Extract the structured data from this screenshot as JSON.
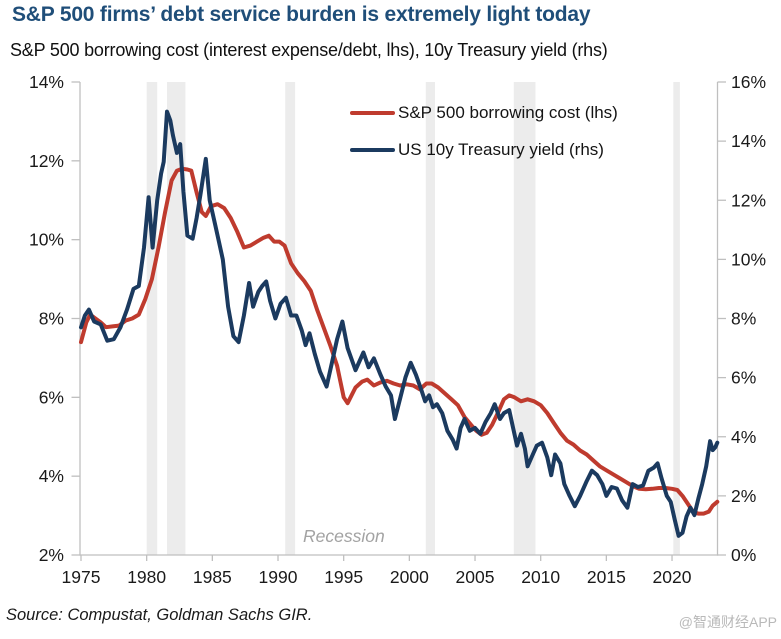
{
  "header": {
    "title": "S&P 500 firms’ debt service burden is extremely light today",
    "subtitle": "S&P 500 borrowing cost (interest expense/debt, lhs), 10y Treasury yield (rhs)"
  },
  "footer": {
    "source": "Source: Compustat, Goldman Sachs GIR.",
    "watermark": "@智通财经APP"
  },
  "chart_data": {
    "type": "line",
    "title": "S&P 500 firms’ debt service burden is extremely light today",
    "subtitle": "S&P 500 borrowing cost (interest expense/debt, lhs), 10y Treasury yield (rhs)",
    "grid": false,
    "legend_position": "top-center",
    "recession_label": "Recession",
    "x_axis": {
      "min": 1975,
      "max": 2023.5,
      "ticks": [
        1975,
        1980,
        1985,
        1990,
        1995,
        2000,
        2005,
        2010,
        2015,
        2020
      ]
    },
    "left_axis": {
      "min": 2,
      "max": 14,
      "unit": "%",
      "ticks": [
        14,
        12,
        10,
        8,
        6,
        4,
        2
      ]
    },
    "right_axis": {
      "min": 0,
      "max": 16,
      "unit": "%",
      "ticks": [
        16,
        14,
        12,
        10,
        8,
        6,
        4,
        2,
        0
      ]
    },
    "recession_bands": [
      [
        1980.0,
        1980.8
      ],
      [
        1981.55,
        1982.95
      ],
      [
        1990.55,
        1991.3
      ],
      [
        2001.25,
        2001.95
      ],
      [
        2007.95,
        2009.6
      ],
      [
        2020.1,
        2020.6
      ]
    ],
    "colors": {
      "recession_band": "#ececec",
      "axis": "#bfbfbf",
      "tick_text": "#1a1a1a"
    },
    "series": [
      {
        "name": "S&P 500 borrowing cost (lhs)",
        "axis": "left",
        "color": "#bf3b2e",
        "points": [
          [
            1975.0,
            7.4
          ],
          [
            1975.4,
            7.9
          ],
          [
            1975.7,
            8.1
          ],
          [
            1976.1,
            8.0
          ],
          [
            1976.5,
            7.9
          ],
          [
            1976.9,
            7.78
          ],
          [
            1977.4,
            7.8
          ],
          [
            1977.9,
            7.82
          ],
          [
            1978.4,
            7.95
          ],
          [
            1978.9,
            8.0
          ],
          [
            1979.4,
            8.1
          ],
          [
            1979.9,
            8.5
          ],
          [
            1980.4,
            9.0
          ],
          [
            1980.9,
            9.8
          ],
          [
            1981.4,
            10.7
          ],
          [
            1981.9,
            11.5
          ],
          [
            1982.3,
            11.75
          ],
          [
            1982.7,
            11.8
          ],
          [
            1983.1,
            11.78
          ],
          [
            1983.4,
            11.75
          ],
          [
            1983.8,
            11.2
          ],
          [
            1984.2,
            10.7
          ],
          [
            1984.5,
            10.6
          ],
          [
            1984.9,
            10.85
          ],
          [
            1985.4,
            10.9
          ],
          [
            1985.9,
            10.8
          ],
          [
            1986.4,
            10.55
          ],
          [
            1986.9,
            10.2
          ],
          [
            1987.4,
            9.8
          ],
          [
            1987.9,
            9.85
          ],
          [
            1988.4,
            9.95
          ],
          [
            1988.9,
            10.05
          ],
          [
            1989.3,
            10.1
          ],
          [
            1989.7,
            9.95
          ],
          [
            1990.1,
            9.95
          ],
          [
            1990.5,
            9.85
          ],
          [
            1991.0,
            9.4
          ],
          [
            1991.5,
            9.15
          ],
          [
            1992.0,
            8.95
          ],
          [
            1992.5,
            8.7
          ],
          [
            1993.0,
            8.2
          ],
          [
            1993.5,
            7.75
          ],
          [
            1994.0,
            7.3
          ],
          [
            1994.5,
            6.8
          ],
          [
            1995.0,
            6.0
          ],
          [
            1995.3,
            5.85
          ],
          [
            1995.9,
            6.25
          ],
          [
            1996.4,
            6.4
          ],
          [
            1996.8,
            6.45
          ],
          [
            1997.3,
            6.3
          ],
          [
            1997.8,
            6.38
          ],
          [
            1998.3,
            6.42
          ],
          [
            1998.8,
            6.35
          ],
          [
            1999.3,
            6.3
          ],
          [
            1999.8,
            6.33
          ],
          [
            2000.3,
            6.3
          ],
          [
            2000.8,
            6.2
          ],
          [
            2001.3,
            6.35
          ],
          [
            2001.7,
            6.35
          ],
          [
            2002.2,
            6.25
          ],
          [
            2002.7,
            6.1
          ],
          [
            2003.2,
            5.95
          ],
          [
            2003.7,
            5.8
          ],
          [
            2004.2,
            5.5
          ],
          [
            2004.7,
            5.3
          ],
          [
            2005.1,
            5.15
          ],
          [
            2005.5,
            5.05
          ],
          [
            2005.9,
            5.1
          ],
          [
            2006.3,
            5.3
          ],
          [
            2006.8,
            5.65
          ],
          [
            2007.2,
            5.95
          ],
          [
            2007.6,
            6.05
          ],
          [
            2008.0,
            6.0
          ],
          [
            2008.5,
            5.9
          ],
          [
            2009.0,
            5.95
          ],
          [
            2009.5,
            5.9
          ],
          [
            2010.0,
            5.8
          ],
          [
            2010.5,
            5.6
          ],
          [
            2011.0,
            5.35
          ],
          [
            2011.5,
            5.1
          ],
          [
            2012.0,
            4.9
          ],
          [
            2012.5,
            4.8
          ],
          [
            2013.0,
            4.65
          ],
          [
            2013.5,
            4.55
          ],
          [
            2014.0,
            4.4
          ],
          [
            2014.5,
            4.25
          ],
          [
            2015.0,
            4.15
          ],
          [
            2015.5,
            4.05
          ],
          [
            2016.0,
            3.95
          ],
          [
            2016.5,
            3.85
          ],
          [
            2017.0,
            3.75
          ],
          [
            2017.5,
            3.68
          ],
          [
            2018.0,
            3.67
          ],
          [
            2018.5,
            3.68
          ],
          [
            2019.0,
            3.7
          ],
          [
            2019.5,
            3.7
          ],
          [
            2020.0,
            3.68
          ],
          [
            2020.4,
            3.65
          ],
          [
            2020.8,
            3.5
          ],
          [
            2021.2,
            3.3
          ],
          [
            2021.6,
            3.1
          ],
          [
            2022.0,
            3.05
          ],
          [
            2022.4,
            3.05
          ],
          [
            2022.8,
            3.1
          ],
          [
            2023.1,
            3.25
          ],
          [
            2023.45,
            3.35
          ]
        ]
      },
      {
        "name": "US 10y Treasury yield (rhs)",
        "axis": "right",
        "color": "#1b3a5f",
        "points": [
          [
            1975.0,
            7.7
          ],
          [
            1975.3,
            8.1
          ],
          [
            1975.6,
            8.3
          ],
          [
            1976.0,
            7.9
          ],
          [
            1976.5,
            7.8
          ],
          [
            1977.0,
            7.25
          ],
          [
            1977.5,
            7.3
          ],
          [
            1978.0,
            7.7
          ],
          [
            1978.5,
            8.3
          ],
          [
            1979.0,
            9.0
          ],
          [
            1979.4,
            9.1
          ],
          [
            1979.8,
            10.4
          ],
          [
            1980.15,
            12.1
          ],
          [
            1980.45,
            10.4
          ],
          [
            1980.8,
            12.0
          ],
          [
            1981.1,
            12.9
          ],
          [
            1981.3,
            13.3
          ],
          [
            1981.55,
            15.0
          ],
          [
            1981.8,
            14.7
          ],
          [
            1982.0,
            14.2
          ],
          [
            1982.3,
            13.6
          ],
          [
            1982.55,
            13.9
          ],
          [
            1982.8,
            12.3
          ],
          [
            1983.1,
            10.8
          ],
          [
            1983.5,
            10.7
          ],
          [
            1983.8,
            11.4
          ],
          [
            1984.1,
            12.2
          ],
          [
            1984.5,
            13.4
          ],
          [
            1984.8,
            12.0
          ],
          [
            1985.2,
            11.2
          ],
          [
            1985.5,
            10.6
          ],
          [
            1985.8,
            10.0
          ],
          [
            1986.2,
            8.4
          ],
          [
            1986.6,
            7.4
          ],
          [
            1987.0,
            7.2
          ],
          [
            1987.4,
            8.1
          ],
          [
            1987.8,
            9.2
          ],
          [
            1988.1,
            8.4
          ],
          [
            1988.5,
            8.9
          ],
          [
            1988.8,
            9.1
          ],
          [
            1989.1,
            9.25
          ],
          [
            1989.4,
            8.6
          ],
          [
            1989.8,
            8.0
          ],
          [
            1990.2,
            8.5
          ],
          [
            1990.6,
            8.7
          ],
          [
            1991.0,
            8.1
          ],
          [
            1991.4,
            8.1
          ],
          [
            1991.8,
            7.6
          ],
          [
            1992.1,
            7.1
          ],
          [
            1992.4,
            7.5
          ],
          [
            1992.8,
            6.8
          ],
          [
            1993.2,
            6.2
          ],
          [
            1993.7,
            5.7
          ],
          [
            1994.1,
            6.5
          ],
          [
            1994.5,
            7.3
          ],
          [
            1994.9,
            7.9
          ],
          [
            1995.3,
            7.0
          ],
          [
            1995.9,
            6.25
          ],
          [
            1996.5,
            6.85
          ],
          [
            1996.9,
            6.35
          ],
          [
            1997.3,
            6.65
          ],
          [
            1997.8,
            6.1
          ],
          [
            1998.2,
            5.7
          ],
          [
            1998.6,
            5.4
          ],
          [
            1998.9,
            4.6
          ],
          [
            1999.3,
            5.3
          ],
          [
            1999.7,
            6.0
          ],
          [
            2000.1,
            6.5
          ],
          [
            2000.5,
            6.1
          ],
          [
            2000.9,
            5.6
          ],
          [
            2001.2,
            5.2
          ],
          [
            2001.5,
            5.4
          ],
          [
            2001.8,
            5.0
          ],
          [
            2002.1,
            5.1
          ],
          [
            2002.5,
            4.8
          ],
          [
            2002.9,
            4.2
          ],
          [
            2003.3,
            3.9
          ],
          [
            2003.6,
            3.6
          ],
          [
            2003.9,
            4.3
          ],
          [
            2004.2,
            4.6
          ],
          [
            2004.6,
            4.2
          ],
          [
            2005.0,
            4.3
          ],
          [
            2005.4,
            4.1
          ],
          [
            2005.8,
            4.5
          ],
          [
            2006.2,
            4.8
          ],
          [
            2006.5,
            5.1
          ],
          [
            2006.9,
            4.6
          ],
          [
            2007.2,
            4.8
          ],
          [
            2007.6,
            4.9
          ],
          [
            2007.9,
            4.3
          ],
          [
            2008.2,
            3.7
          ],
          [
            2008.5,
            4.1
          ],
          [
            2008.8,
            3.6
          ],
          [
            2009.0,
            3.0
          ],
          [
            2009.4,
            3.4
          ],
          [
            2009.7,
            3.7
          ],
          [
            2010.1,
            3.8
          ],
          [
            2010.5,
            3.3
          ],
          [
            2010.8,
            2.7
          ],
          [
            2011.1,
            3.4
          ],
          [
            2011.5,
            3.1
          ],
          [
            2011.8,
            2.4
          ],
          [
            2012.2,
            2.0
          ],
          [
            2012.6,
            1.65
          ],
          [
            2013.0,
            2.0
          ],
          [
            2013.5,
            2.5
          ],
          [
            2013.9,
            2.85
          ],
          [
            2014.3,
            2.7
          ],
          [
            2014.7,
            2.4
          ],
          [
            2015.0,
            2.0
          ],
          [
            2015.4,
            2.3
          ],
          [
            2015.8,
            2.25
          ],
          [
            2016.2,
            1.85
          ],
          [
            2016.6,
            1.6
          ],
          [
            2017.0,
            2.4
          ],
          [
            2017.4,
            2.3
          ],
          [
            2017.8,
            2.35
          ],
          [
            2018.2,
            2.85
          ],
          [
            2018.6,
            2.95
          ],
          [
            2018.9,
            3.1
          ],
          [
            2019.2,
            2.6
          ],
          [
            2019.6,
            2.0
          ],
          [
            2019.9,
            1.8
          ],
          [
            2020.2,
            1.2
          ],
          [
            2020.5,
            0.65
          ],
          [
            2020.8,
            0.75
          ],
          [
            2021.1,
            1.3
          ],
          [
            2021.4,
            1.6
          ],
          [
            2021.7,
            1.35
          ],
          [
            2022.0,
            1.9
          ],
          [
            2022.3,
            2.4
          ],
          [
            2022.6,
            3.0
          ],
          [
            2022.9,
            3.85
          ],
          [
            2023.1,
            3.55
          ],
          [
            2023.3,
            3.65
          ],
          [
            2023.45,
            3.8
          ]
        ]
      }
    ]
  }
}
